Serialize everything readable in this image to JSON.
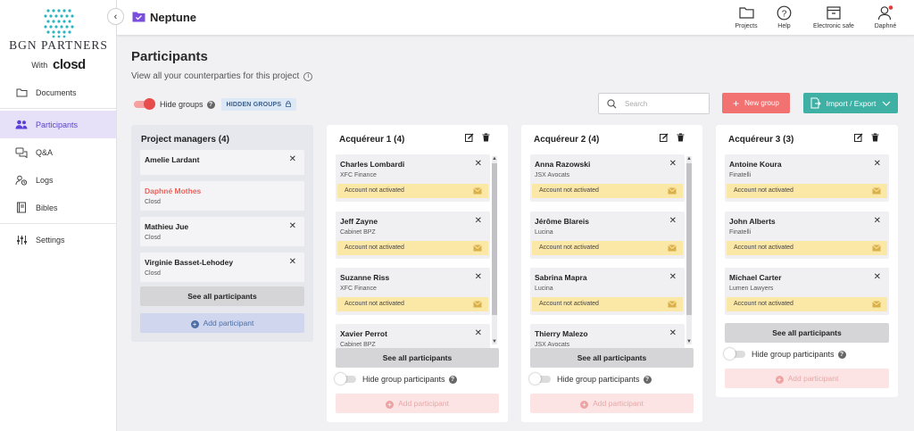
{
  "brand": {
    "name": "BGN PARTNERS",
    "with_label": "With",
    "closd": "closd"
  },
  "nav": [
    {
      "label": "Documents",
      "icon": "folder-icon",
      "active": false
    },
    {
      "label": "Participants",
      "icon": "users-icon",
      "active": true
    },
    {
      "label": "Q&A",
      "icon": "chat-icon",
      "active": false
    },
    {
      "label": "Logs",
      "icon": "logs-icon",
      "active": false
    },
    {
      "label": "Bibles",
      "icon": "book-icon",
      "active": false
    },
    {
      "label": "Settings",
      "icon": "sliders-icon",
      "active": false
    }
  ],
  "topbar": {
    "project": "Neptune",
    "actions": [
      {
        "label": "Projects",
        "icon": "folder-icon"
      },
      {
        "label": "Help",
        "icon": "help-icon"
      },
      {
        "label": "Electronic safe",
        "icon": "safe-icon"
      },
      {
        "label": "Daphné",
        "icon": "user-icon"
      }
    ]
  },
  "page": {
    "title": "Participants",
    "subtitle": "View all your counterparties for this project",
    "hide_groups_label": "Hide groups",
    "hidden_groups_badge": "HIDDEN GROUPS",
    "search_placeholder": "Search",
    "new_group_label": "New group",
    "import_export_label": "Import / Export"
  },
  "groups": [
    {
      "title": "Project managers (4)",
      "members": [
        {
          "name": "Amelie Lardant",
          "company": "",
          "removable": true,
          "highlight": false
        },
        {
          "name": "Daphné Mothes",
          "company": "Closd",
          "removable": false,
          "highlight": true
        },
        {
          "name": "Mathieu Jue",
          "company": "Closd",
          "removable": true,
          "highlight": false
        },
        {
          "name": "Virginie Basset-Lehodey",
          "company": "Closd",
          "removable": true,
          "highlight": false
        }
      ],
      "see_all": "See all participants",
      "add_label": "Add participant"
    },
    {
      "title": "Acquéreur 1 (4)",
      "members": [
        {
          "name": "Charles Lombardi",
          "company": "XFC Finance",
          "status": "Account not activated"
        },
        {
          "name": "Jeff Zayne",
          "company": "Cabinet BPZ",
          "status": "Account not activated"
        },
        {
          "name": "Suzanne Riss",
          "company": "XFC Finance",
          "status": "Account not activated"
        },
        {
          "name": "Xavier Perrot",
          "company": "Cabinet BPZ",
          "status": ""
        }
      ],
      "see_all": "See all participants",
      "hide_label": "Hide group participants",
      "add_label": "Add participant"
    },
    {
      "title": "Acquéreur 2 (4)",
      "members": [
        {
          "name": "Anna Razowski",
          "company": "JSX Avocats",
          "status": "Account not activated"
        },
        {
          "name": "Jérôme Blareis",
          "company": "Lucina",
          "status": "Account not activated"
        },
        {
          "name": "Sabrina Mapra",
          "company": "Lucina",
          "status": "Account not activated"
        },
        {
          "name": "Thierry Malezo",
          "company": "JSX Avocats",
          "status": ""
        }
      ],
      "see_all": "See all participants",
      "hide_label": "Hide group participants",
      "add_label": "Add participant"
    },
    {
      "title": "Acquéreur 3 (3)",
      "members": [
        {
          "name": "Antoine Koura",
          "company": "Finatelli",
          "status": "Account not activated"
        },
        {
          "name": "John Alberts",
          "company": "Finatelli",
          "status": "Account not activated"
        },
        {
          "name": "Michael Carter",
          "company": "Lumen Lawyers",
          "status": "Account not activated"
        }
      ],
      "see_all": "See all participants",
      "hide_label": "Hide group participants",
      "add_label": "Add participant"
    }
  ],
  "colors": {
    "accent": "#5b3fd6",
    "danger": "#f27272",
    "teal": "#3fb0a4",
    "warning_bg": "#fbe7a6"
  }
}
